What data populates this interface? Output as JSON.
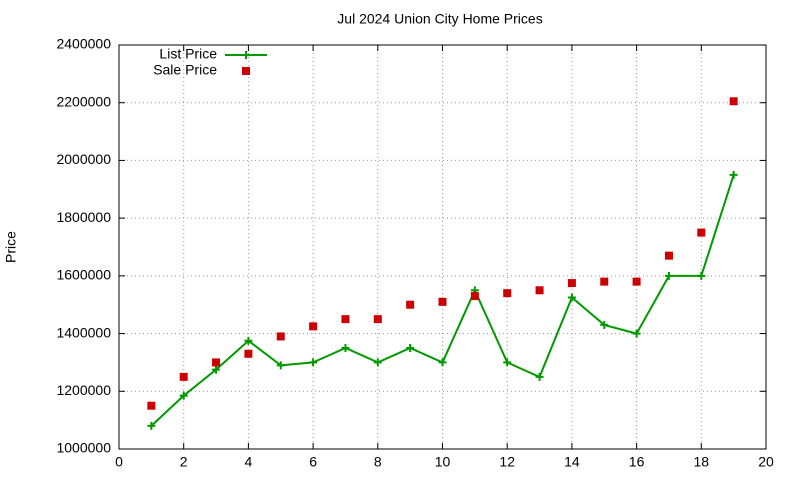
{
  "chart_data": {
    "type": "line",
    "title": "Jul 2024 Union City Home Prices",
    "y_label": "Price",
    "x": [
      1,
      2,
      3,
      4,
      5,
      6,
      7,
      8,
      9,
      10,
      11,
      12,
      13,
      14,
      15,
      16,
      17,
      18,
      19
    ],
    "series": [
      {
        "name": "List Price",
        "color": "#009900",
        "mode": "linespoints",
        "marker": "plus",
        "values": [
          1080000,
          1185000,
          1275000,
          1375000,
          1290000,
          1300000,
          1350000,
          1300000,
          1350000,
          1300000,
          1550000,
          1300000,
          1250000,
          1525000,
          1430000,
          1400000,
          1600000,
          1600000,
          1950000
        ]
      },
      {
        "name": "Sale Price",
        "color": "#cc0000",
        "mode": "points",
        "marker": "square",
        "values": [
          1150000,
          1250000,
          1300000,
          1330000,
          1390000,
          1425000,
          1450000,
          1450000,
          1500000,
          1510000,
          1530000,
          1540000,
          1550000,
          1575000,
          1580000,
          1580000,
          1670000,
          1750000,
          2205000
        ]
      }
    ],
    "xlim": [
      0,
      20
    ],
    "xticks": [
      0,
      2,
      4,
      6,
      8,
      10,
      12,
      14,
      16,
      18,
      20
    ],
    "ylim": [
      1000000,
      2400000
    ],
    "yticks": [
      1000000,
      1200000,
      1400000,
      1600000,
      1800000,
      2000000,
      2200000,
      2400000
    ],
    "grid": true,
    "legend": "top-left"
  }
}
